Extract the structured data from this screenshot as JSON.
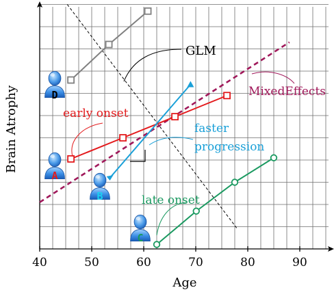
{
  "chart_data": {
    "type": "line",
    "xlabel": "Age",
    "ylabel": "Brain Atrophy",
    "xticks": [
      "40",
      "50",
      "60",
      "70",
      "80",
      "90"
    ],
    "grid": true,
    "series": [
      {
        "id": "D",
        "color": "#808080",
        "marker": "square",
        "points": [
          [
            46,
            7.6
          ],
          [
            53.3,
            9.2
          ],
          [
            60.8,
            10.7
          ]
        ]
      },
      {
        "id": "A",
        "color": "#e31a1c",
        "marker": "square",
        "points": [
          [
            46,
            4.05
          ],
          [
            56,
            5.0
          ],
          [
            66,
            5.95
          ],
          [
            76,
            6.9
          ]
        ]
      },
      {
        "id": "C",
        "color": "#1a9960",
        "marker": "circle",
        "points": [
          [
            62.5,
            0.2
          ],
          [
            70.1,
            1.7
          ],
          [
            77.5,
            3.0
          ],
          [
            85,
            4.1
          ]
        ]
      },
      {
        "id": "B",
        "color": "#1aa0d8",
        "marker": "triangle",
        "points": [
          [
            53.5,
            3.2
          ],
          [
            69,
            7.4
          ]
        ]
      }
    ],
    "glm_line": [
      [
        45.3,
        11.0
      ],
      [
        78,
        0.9
      ]
    ],
    "mixed_effects_line": [
      [
        40,
        2.1
      ],
      [
        88,
        9.3
      ]
    ]
  },
  "annotations": {
    "glm": "GLM",
    "mixed_effects": "MixedEffects",
    "early_onset": "early onset",
    "faster_line1": "faster",
    "faster_line2": "progression",
    "late_onset": "late onset"
  },
  "patients": {
    "D": "D",
    "A": "A",
    "B": "B",
    "C": "C"
  },
  "colors": {
    "early_onset": "#e31a1c",
    "faster_progression": "#1aa0d8",
    "late_onset": "#1a9960",
    "mixed_effects": "#a0185a",
    "patient_D_letter": "#000000",
    "patient_A_letter": "#e31a1c",
    "patient_B_letter": "#1ad0f0",
    "patient_C_letter": "#1a9960"
  },
  "icons": [
    "user-person-icon"
  ]
}
